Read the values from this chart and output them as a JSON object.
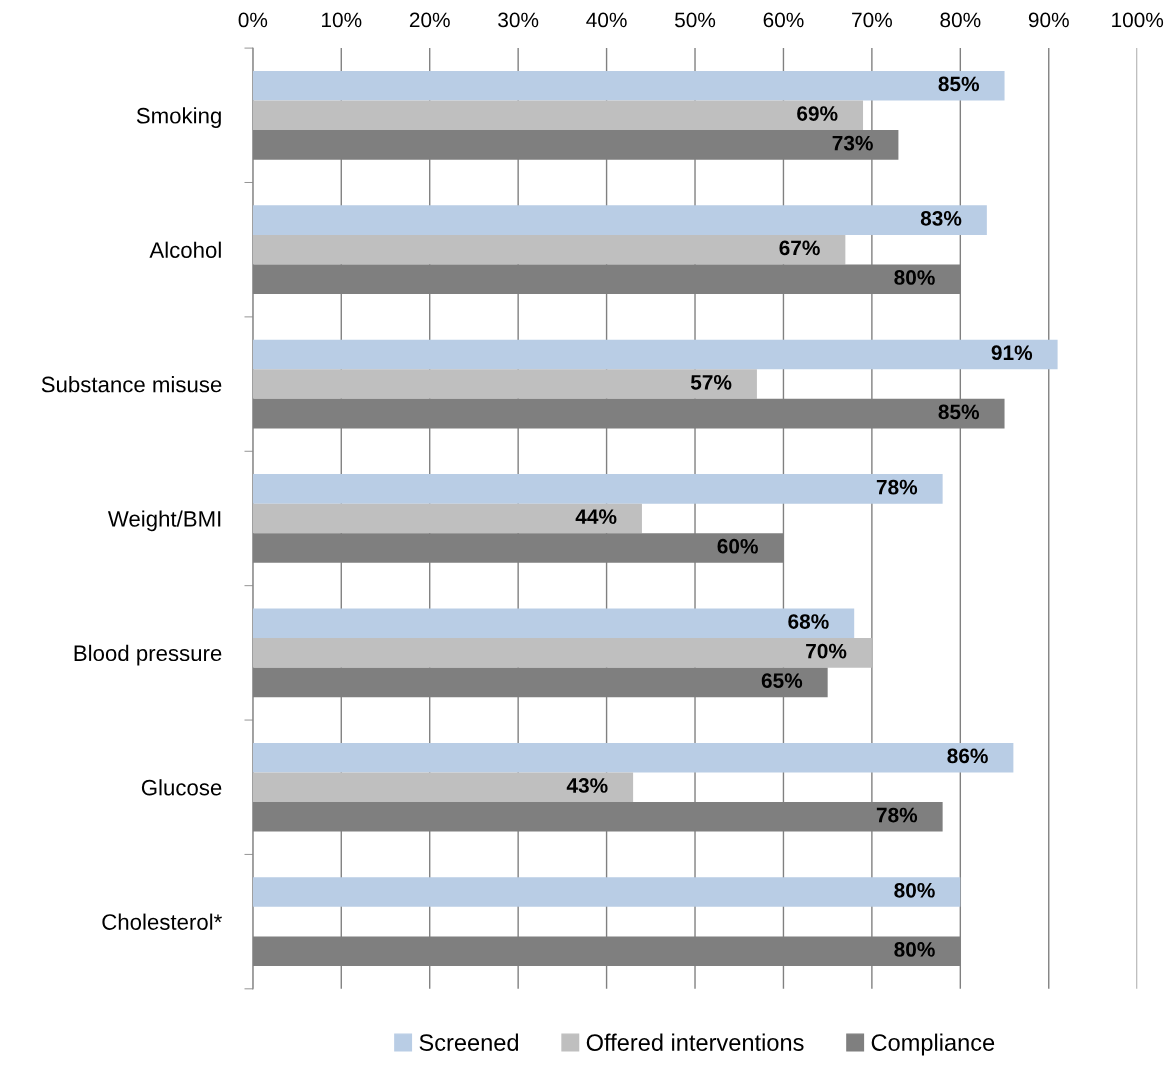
{
  "chart_data": {
    "type": "bar",
    "orientation": "horizontal",
    "categories": [
      "Smoking",
      "Alcohol",
      "Substance misuse",
      "Weight/BMI",
      "Blood pressure",
      "Glucose",
      "Cholesterol*"
    ],
    "series": [
      {
        "name": "Screened",
        "color": "#b9cde5",
        "values": [
          85,
          83,
          91,
          78,
          68,
          86,
          80
        ],
        "value_labels": [
          "85%",
          "83%",
          "91%",
          "78%",
          "68%",
          "86%",
          "80%"
        ]
      },
      {
        "name": "Offered interventions",
        "color": "#bfbfbf",
        "values": [
          69,
          67,
          57,
          44,
          70,
          43,
          null
        ],
        "value_labels": [
          "69%",
          "67%",
          "57%",
          "44%",
          "70%",
          "43%",
          null
        ]
      },
      {
        "name": "Compliance",
        "color": "#7f7f7f",
        "values": [
          73,
          80,
          85,
          60,
          65,
          78,
          80
        ],
        "value_labels": [
          "73%",
          "80%",
          "85%",
          "60%",
          "65%",
          "78%",
          "80%"
        ]
      }
    ],
    "xlim": [
      0,
      100
    ],
    "xticks": [
      {
        "value": 0,
        "label": "0%"
      },
      {
        "value": 10,
        "label": "10%"
      },
      {
        "value": 20,
        "label": "20%"
      },
      {
        "value": 30,
        "label": "30%"
      },
      {
        "value": 40,
        "label": "40%"
      },
      {
        "value": 50,
        "label": "50%"
      },
      {
        "value": 60,
        "label": "60%"
      },
      {
        "value": 70,
        "label": "70%"
      },
      {
        "value": 80,
        "label": "80%"
      },
      {
        "value": 90,
        "label": "90%"
      },
      {
        "value": 100,
        "label": "100%"
      }
    ],
    "grid": "x",
    "legend": "bottom"
  }
}
